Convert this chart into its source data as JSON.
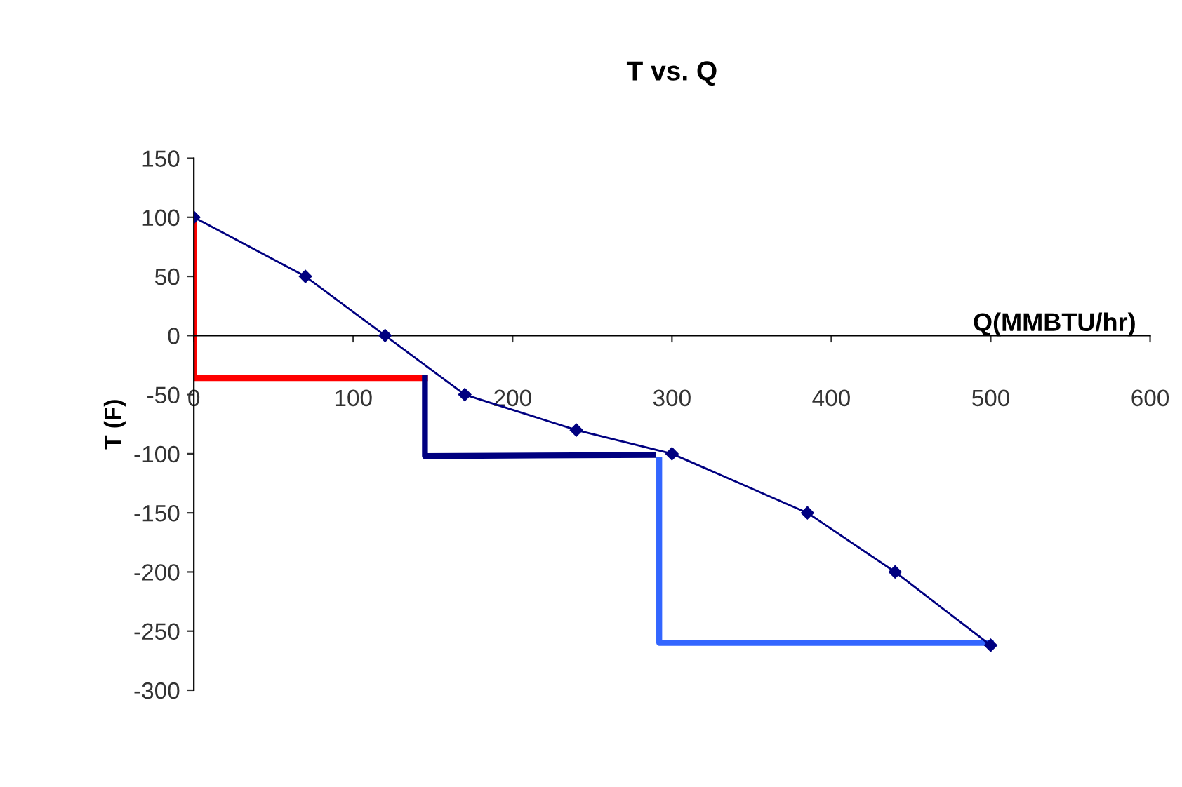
{
  "chart_data": {
    "type": "line",
    "title": "T vs. Q",
    "xlabel": "Q(MMBTU/hr)",
    "ylabel": "T (F)",
    "xlim": [
      0,
      600
    ],
    "xticks": [
      0,
      100,
      200,
      300,
      400,
      500,
      600
    ],
    "ylim": [
      -300,
      150
    ],
    "yticks": [
      -300,
      -250,
      -200,
      -150,
      -100,
      -50,
      0,
      50,
      100,
      150
    ],
    "grid": false,
    "legend": false,
    "series": [
      {
        "color": "#000080",
        "marker": "diamond",
        "line_style": "solid",
        "x": [
          0,
          70,
          120,
          170,
          240,
          300,
          385,
          440,
          500
        ],
        "values": [
          100,
          50,
          0,
          -50,
          -80,
          -100,
          -150,
          -200,
          -262
        ]
      },
      {
        "color": "#ff0000",
        "marker": "none",
        "line_style": "solid",
        "x": [
          0,
          0,
          145
        ],
        "values": [
          100,
          -36,
          -36
        ]
      },
      {
        "color": "#000080",
        "marker": "none",
        "line_style": "solid",
        "x": [
          145,
          145,
          288
        ],
        "values": [
          -36,
          -102,
          -101
        ]
      },
      {
        "color": "#3366ff",
        "marker": "none",
        "line_style": "solid",
        "x": [
          292,
          292,
          500
        ],
        "values": [
          -105,
          -260,
          -260
        ]
      }
    ]
  }
}
